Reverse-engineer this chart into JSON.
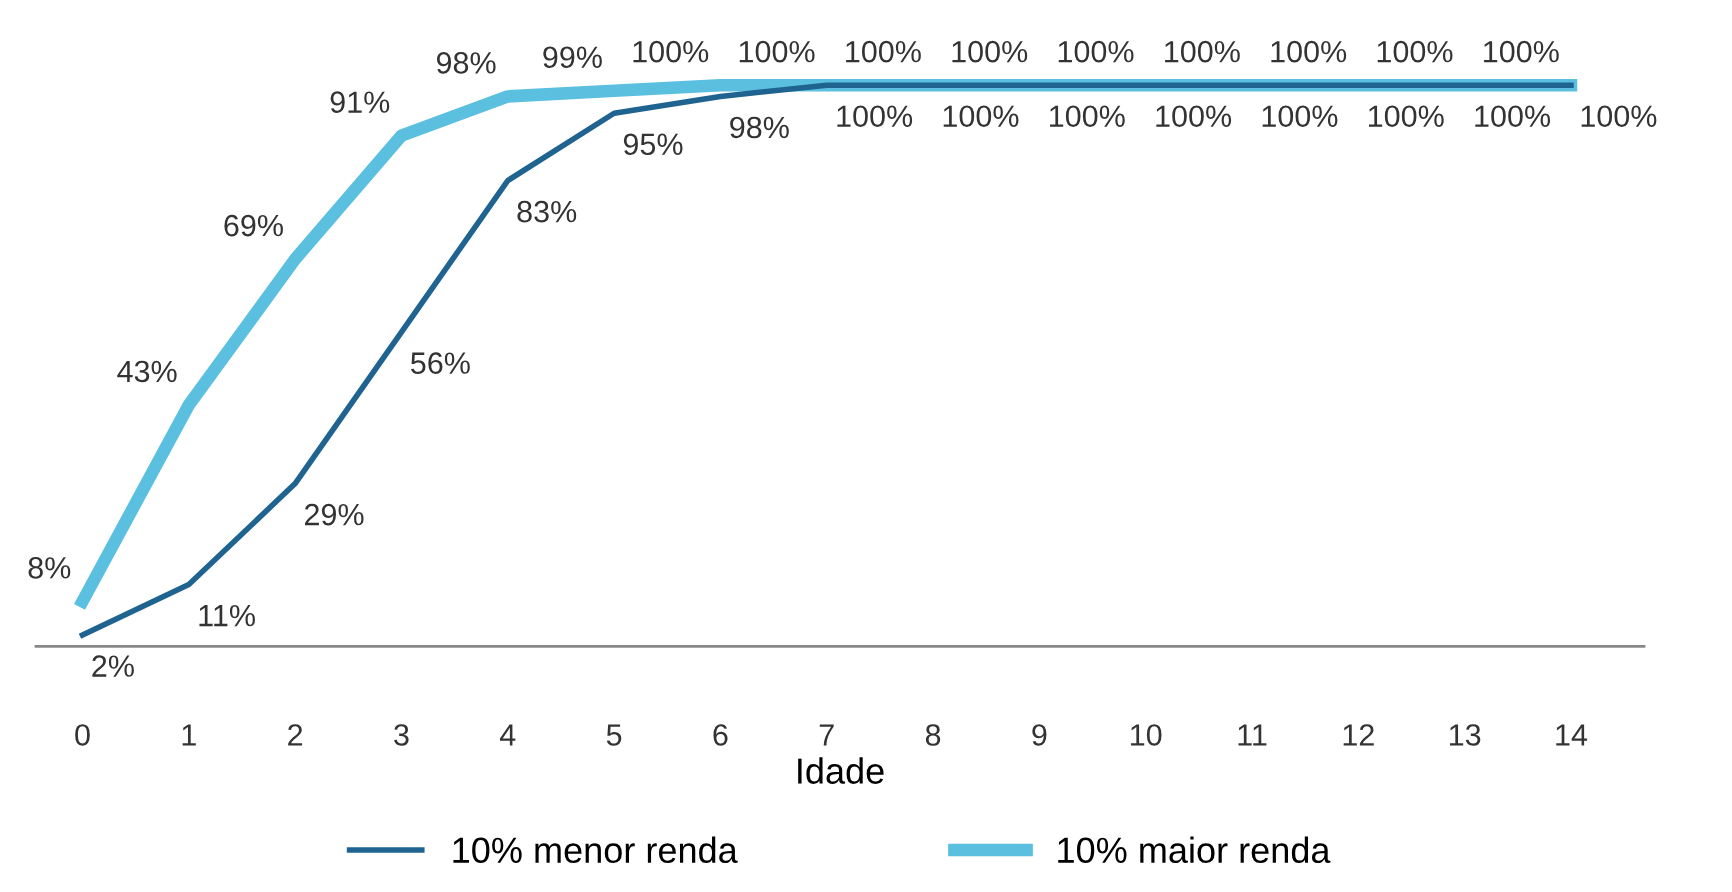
{
  "chart_data": {
    "type": "line",
    "xlabel": "Idade",
    "categories": [
      "0",
      "1",
      "2",
      "3",
      "4",
      "5",
      "6",
      "7",
      "8",
      "9",
      "10",
      "11",
      "12",
      "13",
      "14"
    ],
    "legend": "bottom",
    "grid": false,
    "marker": "none",
    "line_style": "solid",
    "series": [
      {
        "name": "10% menor renda",
        "color": "#1f6391",
        "values": [
          2,
          11,
          29,
          56,
          83,
          95,
          98,
          100,
          100,
          100,
          100,
          100,
          100,
          100,
          100
        ],
        "value_labels": [
          "2%",
          "11%",
          "29%",
          "56%",
          "83%",
          "95%",
          "98%",
          "100%",
          "100%",
          "100%",
          "100%",
          "100%",
          "100%",
          "100%",
          "100%"
        ]
      },
      {
        "name": "10% maior renda",
        "color": "#5bc0e0",
        "values": [
          8,
          43,
          69,
          91,
          98,
          99,
          100,
          100,
          100,
          100,
          100,
          100,
          100,
          100,
          100
        ],
        "value_labels": [
          "8%",
          "43%",
          "69%",
          "91%",
          "98%",
          "99%",
          "100%",
          "100%",
          "100%",
          "100%",
          "100%",
          "100%",
          "100%",
          "100%",
          "100%"
        ]
      }
    ]
  }
}
